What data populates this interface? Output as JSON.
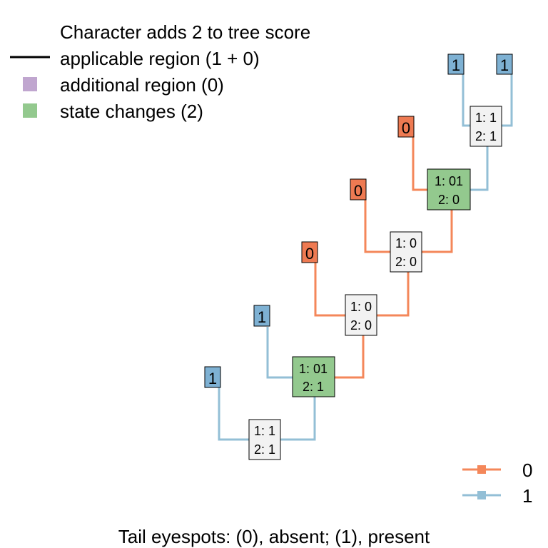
{
  "legend": {
    "title": "Character adds 2 to tree score",
    "items": [
      {
        "label": "applicable region (1 + 0)",
        "color": "#000000",
        "symbol": "line"
      },
      {
        "label": "additional region (0)",
        "color": "#c0a6cf",
        "symbol": "square"
      },
      {
        "label": "state changes (2)",
        "color": "#93c98e",
        "symbol": "square"
      }
    ]
  },
  "state_legend": [
    {
      "label": "0",
      "color": "#f4875a"
    },
    {
      "label": "1",
      "color": "#93bfd6"
    }
  ],
  "colors": {
    "state0": "#f4875a",
    "state1": "#93bfd6",
    "tip0_fill": "#ee7a52",
    "tip1_fill": "#7eb1d3",
    "change_fill": "#93c98e",
    "node_fill": "#f2f2f2"
  },
  "tips": [
    {
      "id": "t1",
      "label": "1",
      "state": 1
    },
    {
      "id": "t2",
      "label": "1",
      "state": 1
    },
    {
      "id": "t3",
      "label": "0",
      "state": 0
    },
    {
      "id": "t4",
      "label": "0",
      "state": 0
    },
    {
      "id": "t5",
      "label": "0",
      "state": 0
    },
    {
      "id": "t6",
      "label": "1",
      "state": 1
    },
    {
      "id": "t7",
      "label": "1",
      "state": 1
    }
  ],
  "nodes": [
    {
      "id": "n1",
      "line1": "1: 1",
      "line2": "2: 1",
      "state_change": false
    },
    {
      "id": "n2",
      "line1": "1: 01",
      "line2": "2: 0",
      "state_change": true
    },
    {
      "id": "n3",
      "line1": "1: 0",
      "line2": "2: 0",
      "state_change": false
    },
    {
      "id": "n4",
      "line1": "1: 0",
      "line2": "2: 0",
      "state_change": false
    },
    {
      "id": "n5",
      "line1": "1: 01",
      "line2": "2: 1",
      "state_change": true
    },
    {
      "id": "n6",
      "line1": "1: 1",
      "line2": "2: 1",
      "state_change": false
    }
  ],
  "footer": "Tail eyespots: (0), absent; (1), present"
}
